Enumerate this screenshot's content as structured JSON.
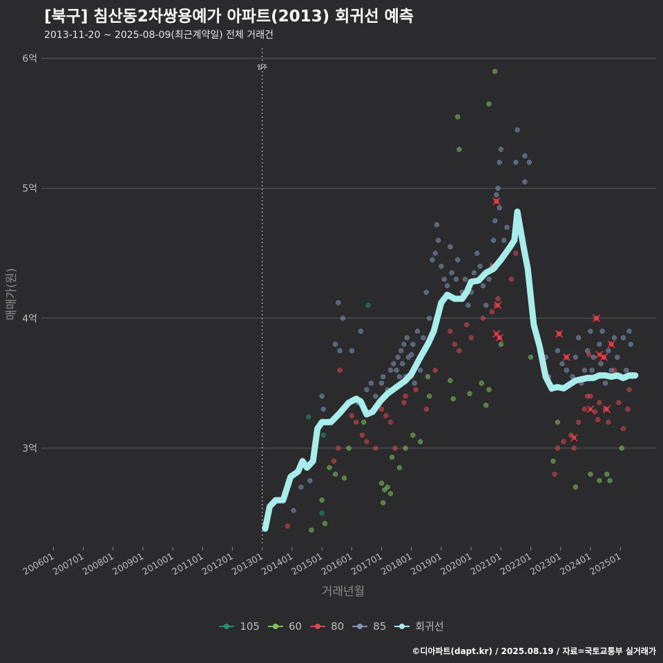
{
  "header": {
    "title": "[북구] 침산동2차쌍용예가 아파트(2013) 회귀선 예측",
    "subtitle": "2013-11-20 ~ 2025-08-09(최근계약일) 전체 거래건"
  },
  "caption": "©디아파트(dapt.kr) / 2025.08.19 / 자료=국토교통부 실거래가",
  "chart_data": {
    "type": "scatter",
    "xlabel": "거래년월",
    "ylabel": "매매가(원)",
    "xlim": [
      2005.6,
      2026.2
    ],
    "ylim": [
      2.25,
      6.12
    ],
    "x_ticks": [
      {
        "value": 2006,
        "label": "200601"
      },
      {
        "value": 2007,
        "label": "200701"
      },
      {
        "value": 2008,
        "label": "200801"
      },
      {
        "value": 2009,
        "label": "200901"
      },
      {
        "value": 2010,
        "label": "201001"
      },
      {
        "value": 2011,
        "label": "201101"
      },
      {
        "value": 2012,
        "label": "201201"
      },
      {
        "value": 2013,
        "label": "201301"
      },
      {
        "value": 2014,
        "label": "201401"
      },
      {
        "value": 2015,
        "label": "201501"
      },
      {
        "value": 2016,
        "label": "201601"
      },
      {
        "value": 2017,
        "label": "201701"
      },
      {
        "value": 2018,
        "label": "201801"
      },
      {
        "value": 2019,
        "label": "201901"
      },
      {
        "value": 2020,
        "label": "202001"
      },
      {
        "value": 2021,
        "label": "202101"
      },
      {
        "value": 2022,
        "label": "202201"
      },
      {
        "value": 2023,
        "label": "202301"
      },
      {
        "value": 2024,
        "label": "202401"
      },
      {
        "value": 2025,
        "label": "202501"
      }
    ],
    "y_ticks": [
      {
        "value": 3,
        "label": "3억"
      },
      {
        "value": 4,
        "label": "4억"
      },
      {
        "value": 5,
        "label": "5억"
      },
      {
        "value": 6,
        "label": "6억"
      }
    ],
    "grid": true,
    "legend_position": "bottom",
    "annotation": {
      "x": 2013.0,
      "label": "입주"
    },
    "colors": {
      "105": "#2a8f6f",
      "60": "#7dc35c",
      "80": "#d9484f",
      "85": "#7f93b8",
      "회귀선": "#a8ecec"
    },
    "legend": [
      "105",
      "60",
      "80",
      "85",
      "회귀선"
    ],
    "series": [
      {
        "name": "105",
        "points": [
          [
            2014.55,
            3.24
          ],
          [
            2015.05,
            3.1
          ],
          [
            2016.55,
            4.1
          ],
          [
            2015.0,
            2.5
          ]
        ]
      },
      {
        "name": "60",
        "points": [
          [
            2014.65,
            2.37
          ],
          [
            2015.1,
            2.42
          ],
          [
            2015.0,
            2.6
          ],
          [
            2015.25,
            2.85
          ],
          [
            2015.45,
            2.8
          ],
          [
            2015.75,
            2.77
          ],
          [
            2015.9,
            3.0
          ],
          [
            2016.4,
            3.2
          ],
          [
            2017.0,
            2.73
          ],
          [
            2017.05,
            2.58
          ],
          [
            2017.1,
            2.68
          ],
          [
            2017.2,
            2.7
          ],
          [
            2017.3,
            2.65
          ],
          [
            2017.35,
            2.93
          ],
          [
            2017.6,
            2.85
          ],
          [
            2017.8,
            3.0
          ],
          [
            2018.05,
            3.1
          ],
          [
            2018.3,
            3.05
          ],
          [
            2018.6,
            3.4
          ],
          [
            2018.55,
            3.55
          ],
          [
            2019.3,
            3.52
          ],
          [
            2019.4,
            3.38
          ],
          [
            2019.95,
            3.42
          ],
          [
            2020.35,
            3.5
          ],
          [
            2020.5,
            3.33
          ],
          [
            2020.6,
            3.45
          ],
          [
            2021.0,
            3.8
          ],
          [
            2022.0,
            3.7
          ],
          [
            2022.75,
            2.9
          ],
          [
            2022.9,
            3.2
          ],
          [
            2023.5,
            2.7
          ],
          [
            2024.0,
            2.8
          ],
          [
            2024.3,
            2.75
          ],
          [
            2024.55,
            2.8
          ],
          [
            2024.65,
            2.75
          ],
          [
            2025.05,
            3.0
          ],
          [
            2019.55,
            5.55
          ],
          [
            2019.6,
            5.3
          ],
          [
            2020.8,
            5.9
          ],
          [
            2020.6,
            5.65
          ]
        ]
      },
      {
        "name": "80",
        "points": [
          [
            2013.85,
            2.4
          ],
          [
            2015.4,
            2.9
          ],
          [
            2015.6,
            3.6
          ],
          [
            2015.55,
            3.0
          ],
          [
            2016.0,
            3.25
          ],
          [
            2016.15,
            3.2
          ],
          [
            2016.35,
            3.1
          ],
          [
            2016.5,
            3.05
          ],
          [
            2016.8,
            3.0
          ],
          [
            2017.0,
            3.3
          ],
          [
            2017.15,
            3.25
          ],
          [
            2017.3,
            3.2
          ],
          [
            2017.45,
            3.0
          ],
          [
            2017.75,
            3.35
          ],
          [
            2017.8,
            3.4
          ],
          [
            2018.0,
            3.55
          ],
          [
            2018.15,
            3.45
          ],
          [
            2018.5,
            3.3
          ],
          [
            2018.8,
            3.6
          ],
          [
            2019.3,
            3.9
          ],
          [
            2019.45,
            3.8
          ],
          [
            2019.6,
            3.75
          ],
          [
            2019.85,
            3.95
          ],
          [
            2020.0,
            3.85
          ],
          [
            2020.4,
            4.0
          ],
          [
            2020.7,
            4.05
          ],
          [
            2020.85,
            4.1
          ],
          [
            2020.95,
            3.85
          ],
          [
            2021.35,
            4.3
          ],
          [
            2021.5,
            4.5
          ],
          [
            2020.85,
            4.9
          ],
          [
            2020.75,
            4.4
          ],
          [
            2020.9,
            4.15
          ],
          [
            2022.95,
            3.88
          ],
          [
            2023.2,
            3.7
          ],
          [
            2023.1,
            3.05
          ],
          [
            2023.35,
            3.1
          ],
          [
            2023.45,
            3.0
          ],
          [
            2023.6,
            3.2
          ],
          [
            2023.8,
            3.3
          ],
          [
            2024.0,
            3.4
          ],
          [
            2024.15,
            3.28
          ],
          [
            2024.25,
            3.22
          ],
          [
            2024.3,
            3.35
          ],
          [
            2024.45,
            3.7
          ],
          [
            2024.5,
            3.3
          ],
          [
            2024.6,
            3.2
          ],
          [
            2024.7,
            3.8
          ],
          [
            2024.8,
            3.6
          ],
          [
            2024.85,
            3.55
          ],
          [
            2024.95,
            3.35
          ],
          [
            2025.1,
            3.15
          ],
          [
            2025.25,
            3.3
          ],
          [
            2025.3,
            3.45
          ],
          [
            2022.8,
            2.8
          ],
          [
            2024.2,
            4.0
          ],
          [
            2023.95,
            3.72
          ],
          [
            2022.9,
            3.0
          ],
          [
            2023.9,
            3.4
          ]
        ]
      },
      {
        "name": "85",
        "points": [
          [
            2014.05,
            2.52
          ],
          [
            2014.3,
            2.7
          ],
          [
            2014.6,
            2.75
          ],
          [
            2015.0,
            3.4
          ],
          [
            2015.05,
            3.3
          ],
          [
            2015.15,
            3.2
          ],
          [
            2015.45,
            3.8
          ],
          [
            2015.55,
            4.12
          ],
          [
            2015.7,
            4.0
          ],
          [
            2015.6,
            3.75
          ],
          [
            2016.0,
            3.75
          ],
          [
            2016.2,
            3.35
          ],
          [
            2016.3,
            3.9
          ],
          [
            2016.5,
            3.45
          ],
          [
            2016.65,
            3.5
          ],
          [
            2016.8,
            3.4
          ],
          [
            2017.0,
            3.5
          ],
          [
            2017.05,
            3.55
          ],
          [
            2017.2,
            3.45
          ],
          [
            2017.3,
            3.6
          ],
          [
            2017.4,
            3.65
          ],
          [
            2017.5,
            3.6
          ],
          [
            2017.55,
            3.7
          ],
          [
            2017.6,
            3.55
          ],
          [
            2017.65,
            3.75
          ],
          [
            2017.7,
            3.65
          ],
          [
            2017.75,
            3.8
          ],
          [
            2017.8,
            3.55
          ],
          [
            2017.85,
            3.85
          ],
          [
            2017.9,
            3.7
          ],
          [
            2018.0,
            3.72
          ],
          [
            2018.05,
            3.8
          ],
          [
            2018.1,
            3.5
          ],
          [
            2018.2,
            3.9
          ],
          [
            2018.3,
            3.6
          ],
          [
            2018.4,
            3.85
          ],
          [
            2018.5,
            4.2
          ],
          [
            2018.6,
            4.0
          ],
          [
            2018.7,
            4.45
          ],
          [
            2018.8,
            4.5
          ],
          [
            2018.85,
            4.72
          ],
          [
            2018.9,
            4.6
          ],
          [
            2019.0,
            4.4
          ],
          [
            2019.1,
            4.3
          ],
          [
            2019.2,
            4.25
          ],
          [
            2019.3,
            4.55
          ],
          [
            2019.35,
            4.35
          ],
          [
            2019.5,
            4.3
          ],
          [
            2019.55,
            4.45
          ],
          [
            2019.7,
            4.2
          ],
          [
            2019.8,
            4.3
          ],
          [
            2019.9,
            4.1
          ],
          [
            2020.0,
            4.2
          ],
          [
            2020.1,
            4.35
          ],
          [
            2020.2,
            4.5
          ],
          [
            2020.3,
            4.4
          ],
          [
            2020.4,
            4.25
          ],
          [
            2020.5,
            4.1
          ],
          [
            2020.6,
            4.3
          ],
          [
            2020.7,
            4.4
          ],
          [
            2020.75,
            4.6
          ],
          [
            2020.8,
            4.75
          ],
          [
            2020.85,
            4.95
          ],
          [
            2020.9,
            5.0
          ],
          [
            2020.95,
            5.2
          ],
          [
            2021.0,
            5.3
          ],
          [
            2020.95,
            4.85
          ],
          [
            2021.1,
            4.6
          ],
          [
            2021.2,
            4.7
          ],
          [
            2021.55,
            5.45
          ],
          [
            2021.5,
            5.2
          ],
          [
            2021.8,
            5.25
          ],
          [
            2021.95,
            5.2
          ],
          [
            2021.8,
            5.05
          ],
          [
            2022.1,
            3.95
          ],
          [
            2022.3,
            3.8
          ],
          [
            2022.5,
            3.7
          ],
          [
            2022.6,
            3.55
          ],
          [
            2022.7,
            3.45
          ],
          [
            2022.9,
            3.75
          ],
          [
            2023.05,
            3.65
          ],
          [
            2023.2,
            3.6
          ],
          [
            2023.4,
            3.55
          ],
          [
            2023.5,
            3.7
          ],
          [
            2023.6,
            3.85
          ],
          [
            2023.7,
            3.5
          ],
          [
            2023.8,
            3.6
          ],
          [
            2023.9,
            3.75
          ],
          [
            2024.0,
            3.9
          ],
          [
            2024.05,
            3.6
          ],
          [
            2024.1,
            3.7
          ],
          [
            2024.2,
            3.55
          ],
          [
            2024.3,
            3.8
          ],
          [
            2024.35,
            3.65
          ],
          [
            2024.4,
            3.9
          ],
          [
            2024.5,
            3.5
          ],
          [
            2024.6,
            3.75
          ],
          [
            2024.7,
            3.6
          ],
          [
            2024.8,
            3.85
          ],
          [
            2024.9,
            3.7
          ],
          [
            2025.0,
            3.55
          ],
          [
            2025.1,
            3.85
          ],
          [
            2025.2,
            3.6
          ],
          [
            2025.3,
            3.9
          ],
          [
            2025.35,
            3.8
          ],
          [
            2025.4,
            3.55
          ]
        ]
      }
    ],
    "regression": {
      "name": "회귀선",
      "points": [
        [
          2013.1,
          2.38
        ],
        [
          2013.25,
          2.55
        ],
        [
          2013.45,
          2.6
        ],
        [
          2013.7,
          2.6
        ],
        [
          2013.95,
          2.78
        ],
        [
          2014.2,
          2.82
        ],
        [
          2014.35,
          2.9
        ],
        [
          2014.5,
          2.85
        ],
        [
          2014.7,
          2.9
        ],
        [
          2014.85,
          3.15
        ],
        [
          2015.0,
          3.2
        ],
        [
          2015.3,
          3.2
        ],
        [
          2015.6,
          3.27
        ],
        [
          2015.9,
          3.35
        ],
        [
          2016.15,
          3.38
        ],
        [
          2016.3,
          3.36
        ],
        [
          2016.5,
          3.26
        ],
        [
          2016.7,
          3.28
        ],
        [
          2016.95,
          3.36
        ],
        [
          2017.2,
          3.42
        ],
        [
          2017.5,
          3.47
        ],
        [
          2017.8,
          3.52
        ],
        [
          2018.0,
          3.57
        ],
        [
          2018.3,
          3.7
        ],
        [
          2018.55,
          3.8
        ],
        [
          2018.75,
          3.9
        ],
        [
          2019.0,
          4.12
        ],
        [
          2019.2,
          4.18
        ],
        [
          2019.45,
          4.15
        ],
        [
          2019.7,
          4.15
        ],
        [
          2019.85,
          4.2
        ],
        [
          2020.0,
          4.28
        ],
        [
          2020.25,
          4.29
        ],
        [
          2020.5,
          4.35
        ],
        [
          2020.75,
          4.38
        ],
        [
          2021.0,
          4.45
        ],
        [
          2021.25,
          4.53
        ],
        [
          2021.45,
          4.6
        ],
        [
          2021.55,
          4.82
        ],
        [
          2021.75,
          4.56
        ],
        [
          2021.9,
          4.38
        ],
        [
          2022.1,
          3.95
        ],
        [
          2022.3,
          3.78
        ],
        [
          2022.5,
          3.55
        ],
        [
          2022.7,
          3.46
        ],
        [
          2022.9,
          3.47
        ],
        [
          2023.1,
          3.46
        ],
        [
          2023.3,
          3.49
        ],
        [
          2023.5,
          3.52
        ],
        [
          2023.7,
          3.53
        ],
        [
          2023.9,
          3.54
        ],
        [
          2024.1,
          3.54
        ],
        [
          2024.3,
          3.56
        ],
        [
          2024.5,
          3.56
        ],
        [
          2024.7,
          3.55
        ],
        [
          2024.9,
          3.56
        ],
        [
          2025.1,
          3.54
        ],
        [
          2025.3,
          3.56
        ],
        [
          2025.5,
          3.56
        ]
      ]
    },
    "highlight_points": [
      [
        2020.85,
        4.9
      ],
      [
        2020.75,
        4.4
      ],
      [
        2020.9,
        4.1
      ],
      [
        2020.85,
        3.88
      ],
      [
        2020.95,
        3.85
      ],
      [
        2022.95,
        3.88
      ],
      [
        2023.2,
        3.7
      ],
      [
        2023.45,
        3.08
      ],
      [
        2024.0,
        3.3
      ],
      [
        2024.2,
        4.0
      ],
      [
        2024.45,
        3.7
      ],
      [
        2024.55,
        3.3
      ],
      [
        2024.7,
        3.8
      ],
      [
        2024.3,
        3.72
      ]
    ]
  }
}
